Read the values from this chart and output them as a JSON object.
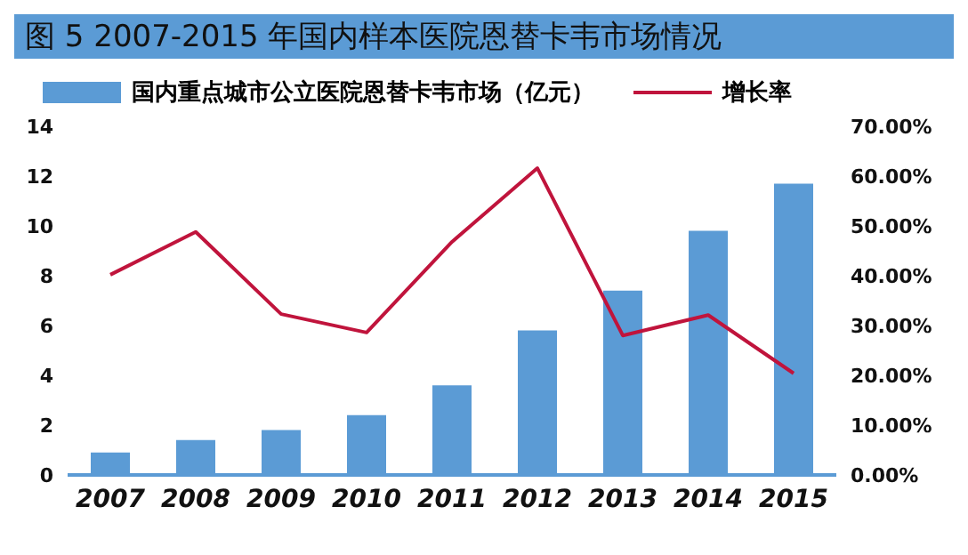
{
  "chart_data": {
    "type": "bar",
    "title": "图 5   2007-2015 年国内样本医院恩替卡韦市场情况",
    "categories": [
      "2007",
      "2008",
      "2009",
      "2010",
      "2011",
      "2012",
      "2013",
      "2014",
      "2015"
    ],
    "series": [
      {
        "name": "国内重点城市公立医院恩替卡韦市场（亿元）",
        "color": "#5b9bd5",
        "values": [
          0.9,
          1.4,
          1.8,
          2.4,
          3.6,
          5.8,
          7.4,
          9.8,
          11.7
        ]
      },
      {
        "name": "增长率",
        "type": "line",
        "axis": "y2",
        "color": "#c0143c",
        "values": [
          40.2,
          48.8,
          32.3,
          28.6,
          46.8,
          61.6,
          28.0,
          32.1,
          20.4
        ]
      }
    ],
    "ylim": [
      0,
      14
    ],
    "yticks": [
      0,
      2,
      4,
      6,
      8,
      10,
      12,
      14
    ],
    "y2lim": [
      0,
      70
    ],
    "y2ticks": [
      {
        "value": 0,
        "label": "0.00%"
      },
      {
        "value": 10,
        "label": "10.00%"
      },
      {
        "value": 20,
        "label": "20.00%"
      },
      {
        "value": 30,
        "label": "30.00%"
      },
      {
        "value": 40,
        "label": "40.00%"
      },
      {
        "value": 50,
        "label": "50.00%"
      },
      {
        "value": 60,
        "label": "60.00%"
      },
      {
        "value": 70,
        "label": "70.00%"
      }
    ],
    "legend": "top",
    "grid": false,
    "marker": "none"
  }
}
